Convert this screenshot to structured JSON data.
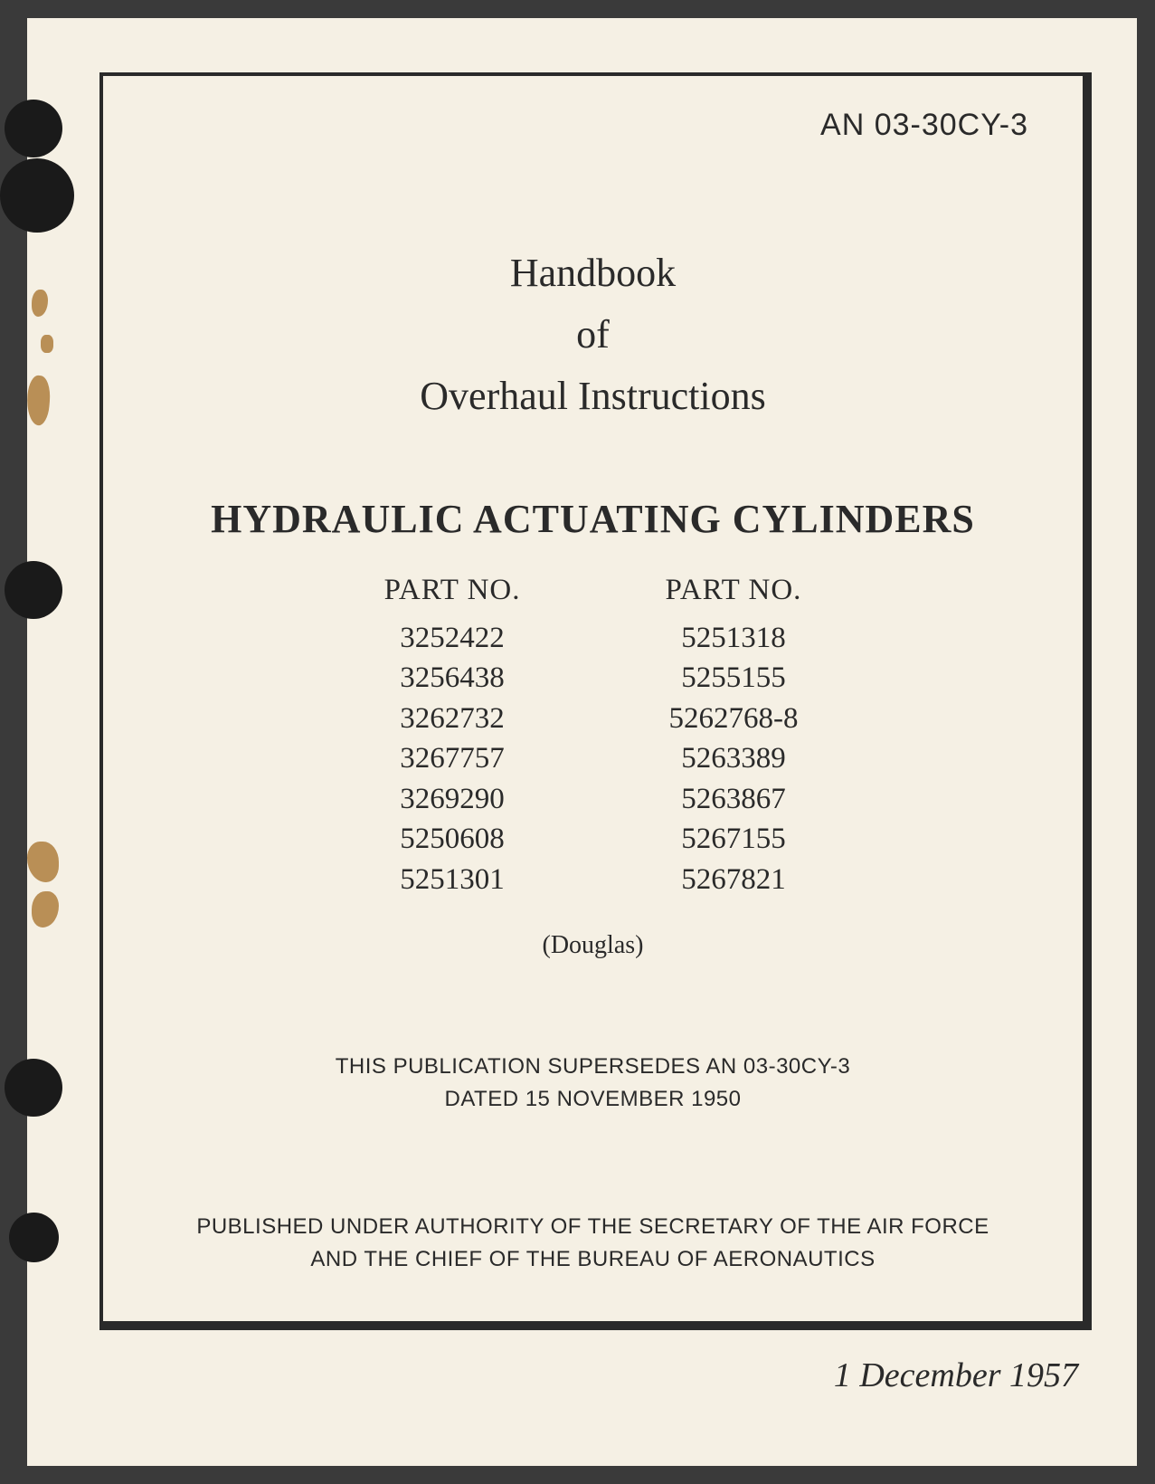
{
  "document_number": "AN 03-30CY-3",
  "title": {
    "line1": "Handbook",
    "line2": "of",
    "line3": "Overhaul Instructions"
  },
  "main_title": "HYDRAULIC ACTUATING CYLINDERS",
  "parts": {
    "header": "PART NO.",
    "column1": [
      "3252422",
      "3256438",
      "3262732",
      "3267757",
      "3269290",
      "5250608",
      "5251301"
    ],
    "column2": [
      "5251318",
      "5255155",
      "5262768-8",
      "5263389",
      "5263867",
      "5267155",
      "5267821"
    ]
  },
  "manufacturer": "(Douglas)",
  "supersedes": {
    "line1": "THIS PUBLICATION SUPERSEDES AN 03-30CY-3",
    "line2": "DATED 15 NOVEMBER 1950"
  },
  "authority": {
    "line1": "PUBLISHED UNDER AUTHORITY OF THE SECRETARY OF THE AIR FORCE",
    "line2": "AND THE CHIEF OF THE BUREAU OF AERONAUTICS"
  },
  "date": "1 December 1957",
  "colors": {
    "page_background": "#f5f0e4",
    "body_background": "#3a3a3a",
    "text": "#2a2a2a",
    "border": "#2a2a2a"
  }
}
